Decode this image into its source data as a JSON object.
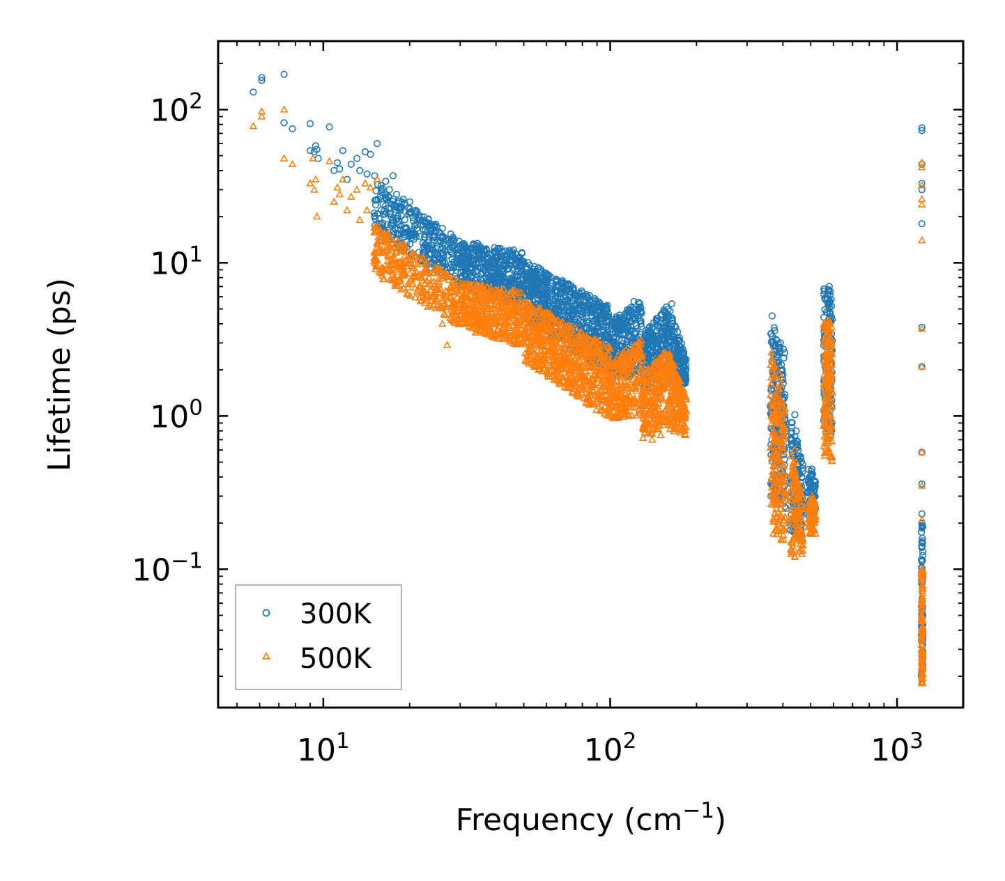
{
  "chart_data": {
    "type": "scatter",
    "title": "",
    "xlabel": "Frequency (cm",
    "xlabel_exponent": "−1",
    "xlabel_suffix": ")",
    "ylabel": "Lifetime (ps)",
    "xscale": "log",
    "yscale": "log",
    "xlim": [
      4.3,
      1700
    ],
    "ylim": [
      0.0125,
      280
    ],
    "x_ticks": [
      {
        "base": "10",
        "exp": "1",
        "value": 10
      },
      {
        "base": "10",
        "exp": "2",
        "value": 100
      },
      {
        "base": "10",
        "exp": "3",
        "value": 1000
      }
    ],
    "y_ticks": [
      {
        "base": "10",
        "exp": "−1",
        "value": 0.1
      },
      {
        "base": "10",
        "exp": "0",
        "value": 1
      },
      {
        "base": "10",
        "exp": "1",
        "value": 10
      },
      {
        "base": "10",
        "exp": "2",
        "value": 100
      }
    ],
    "legend": {
      "position": "lower-left"
    },
    "series": [
      {
        "name": "300K",
        "color": "#1f77b4",
        "marker": "circle",
        "points": [
          [
            5.7,
            130
          ],
          [
            6.1,
            155
          ],
          [
            6.1,
            162
          ],
          [
            7.3,
            170
          ],
          [
            7.3,
            82
          ],
          [
            7.8,
            75
          ],
          [
            9,
            54
          ],
          [
            9,
            81
          ],
          [
            9.3,
            53
          ],
          [
            9.4,
            58
          ],
          [
            9.5,
            55
          ],
          [
            9.6,
            48
          ],
          [
            10.5,
            77
          ],
          [
            10.9,
            40
          ],
          [
            11.2,
            45
          ],
          [
            11.4,
            41
          ],
          [
            11.7,
            54
          ],
          [
            12.1,
            35
          ],
          [
            12.5,
            44
          ],
          [
            13.1,
            48
          ],
          [
            13.4,
            40
          ],
          [
            14,
            53
          ],
          [
            14.2,
            38
          ],
          [
            14.6,
            51
          ],
          [
            15.1,
            37
          ],
          [
            15.4,
            60
          ],
          [
            15.9,
            32
          ],
          [
            16.5,
            34
          ],
          [
            17,
            30
          ],
          [
            17.5,
            37
          ],
          [
            18,
            28
          ],
          [
            19,
            26
          ],
          [
            20,
            25
          ],
          [
            21,
            22
          ],
          [
            22,
            20
          ],
          [
            23,
            18
          ],
          [
            24.5,
            17
          ],
          [
            26,
            15
          ],
          [
            28,
            14
          ],
          [
            30,
            13
          ],
          [
            33,
            12.5
          ],
          [
            36,
            11.5
          ],
          [
            40,
            11
          ],
          [
            45,
            11.5
          ],
          [
            50,
            10
          ],
          [
            55,
            8.5
          ],
          [
            60,
            7.5
          ],
          [
            66,
            7
          ],
          [
            72,
            6.5
          ],
          [
            78,
            5.5
          ],
          [
            85,
            5
          ],
          [
            92,
            4.5
          ],
          [
            100,
            2.7
          ],
          [
            108,
            3.6
          ],
          [
            115,
            4.5
          ],
          [
            121,
            5.6
          ],
          [
            128,
            4
          ],
          [
            136,
            2.8
          ],
          [
            143,
            3
          ],
          [
            150,
            3.8
          ],
          [
            158,
            4.6
          ],
          [
            164,
            5.4
          ],
          [
            172,
            3.2
          ],
          [
            178,
            2.4
          ],
          [
            183,
            1.8
          ],
          [
            367,
            4.5
          ],
          [
            370,
            3
          ],
          [
            372,
            1.5
          ],
          [
            375,
            0.6
          ],
          [
            380,
            1.2
          ],
          [
            385,
            2.8
          ],
          [
            392,
            3
          ],
          [
            398,
            2
          ],
          [
            402,
            0.6
          ],
          [
            405,
            0.35
          ],
          [
            410,
            0.25
          ],
          [
            420,
            0.3
          ],
          [
            430,
            0.4
          ],
          [
            440,
            1.02
          ],
          [
            445,
            0.8
          ],
          [
            450,
            0.55
          ],
          [
            455,
            0.3
          ],
          [
            462,
            0.18
          ],
          [
            470,
            0.3
          ],
          [
            480,
            0.25
          ],
          [
            495,
            0.4
          ],
          [
            505,
            0.45
          ],
          [
            515,
            0.3
          ],
          [
            560,
            1
          ],
          [
            565,
            2
          ],
          [
            570,
            4
          ],
          [
            575,
            5.5
          ],
          [
            580,
            7
          ],
          [
            585,
            6.5
          ],
          [
            590,
            3
          ],
          [
            1220,
            76
          ],
          [
            1220,
            73
          ],
          [
            1220,
            44
          ],
          [
            1220,
            33
          ],
          [
            1220,
            30
          ],
          [
            1220,
            18
          ],
          [
            1220,
            3.8
          ],
          [
            1220,
            2.1
          ],
          [
            1220,
            0.58
          ],
          [
            1220,
            0.36
          ],
          [
            1220,
            0.23
          ],
          [
            1220,
            0.15
          ],
          [
            1220,
            0.08
          ],
          [
            1220,
            0.05
          ],
          [
            1220,
            0.035
          ],
          [
            1220,
            0.022
          ]
        ],
        "bands": [
          {
            "x0": 15,
            "x1": 30,
            "lo0": 16,
            "hi0": 34,
            "lo1": 7,
            "hi1": 14,
            "n": 320
          },
          {
            "x0": 30,
            "x1": 50,
            "lo0": 7,
            "hi0": 14,
            "lo1": 5.2,
            "hi1": 12,
            "n": 420
          },
          {
            "x0": 50,
            "x1": 100,
            "lo0": 4.2,
            "hi0": 10.5,
            "lo1": 1.9,
            "hi1": 5.2,
            "n": 700
          },
          {
            "x0": 100,
            "x1": 130,
            "lo0": 1.8,
            "hi0": 4.2,
            "lo1": 1.8,
            "hi1": 5.8,
            "n": 260
          },
          {
            "x0": 130,
            "x1": 160,
            "lo0": 1.4,
            "hi0": 3.4,
            "lo1": 1.9,
            "hi1": 5.4,
            "n": 240
          },
          {
            "x0": 160,
            "x1": 184,
            "lo0": 1.6,
            "hi0": 5.3,
            "lo1": 1.6,
            "hi1": 2.4,
            "n": 180
          },
          {
            "x0": 362,
            "x1": 408,
            "lo0": 0.3,
            "hi0": 4.5,
            "lo1": 0.25,
            "hi1": 2.6,
            "n": 200
          },
          {
            "x0": 425,
            "x1": 470,
            "lo0": 0.18,
            "hi0": 1.0,
            "lo1": 0.15,
            "hi1": 0.5,
            "n": 120
          },
          {
            "x0": 490,
            "x1": 520,
            "lo0": 0.22,
            "hi0": 0.45,
            "lo1": 0.2,
            "hi1": 0.42,
            "n": 60
          },
          {
            "x0": 555,
            "x1": 595,
            "lo0": 0.8,
            "hi0": 7,
            "lo1": 0.7,
            "hi1": 6.5,
            "n": 150
          },
          {
            "x0": 1215,
            "x1": 1230,
            "lo0": 0.02,
            "hi0": 0.2,
            "lo1": 0.02,
            "hi1": 0.2,
            "n": 80
          }
        ]
      },
      {
        "name": "500K",
        "color": "#ff7f0e",
        "marker": "triangle",
        "points": [
          [
            5.7,
            78
          ],
          [
            6.1,
            97
          ],
          [
            6.1,
            90
          ],
          [
            7.3,
            100
          ],
          [
            7.3,
            48
          ],
          [
            7.8,
            44
          ],
          [
            9,
            33
          ],
          [
            9.2,
            48
          ],
          [
            9.3,
            30
          ],
          [
            9.4,
            35
          ],
          [
            9.5,
            20
          ],
          [
            10.5,
            46
          ],
          [
            10.9,
            25
          ],
          [
            11.2,
            31
          ],
          [
            11.4,
            28
          ],
          [
            11.7,
            35
          ],
          [
            12.1,
            22
          ],
          [
            12.5,
            27
          ],
          [
            13.1,
            30
          ],
          [
            13.4,
            19
          ],
          [
            14,
            33
          ],
          [
            14.2,
            22
          ],
          [
            14.6,
            31
          ],
          [
            15.1,
            16
          ],
          [
            15.4,
            35
          ],
          [
            16,
            9
          ],
          [
            16.5,
            14
          ],
          [
            17,
            9
          ],
          [
            18,
            10
          ],
          [
            19,
            9
          ],
          [
            20,
            8.5
          ],
          [
            22,
            8
          ],
          [
            24,
            6
          ],
          [
            26,
            4
          ],
          [
            27,
            2.9
          ],
          [
            30,
            4.6
          ],
          [
            34,
            3.5
          ],
          [
            38,
            4.5
          ],
          [
            42,
            5
          ],
          [
            48,
            5
          ],
          [
            52,
            2.2
          ],
          [
            58,
            2.2
          ],
          [
            64,
            2.1
          ],
          [
            70,
            2.4
          ],
          [
            80,
            1.8
          ],
          [
            90,
            1.2
          ],
          [
            100,
            1
          ],
          [
            110,
            1.5
          ],
          [
            120,
            2.5
          ],
          [
            130,
            1.5
          ],
          [
            140,
            0.7
          ],
          [
            150,
            0.75
          ],
          [
            160,
            1.6
          ],
          [
            170,
            1.8
          ],
          [
            178,
            0.8
          ],
          [
            183,
            0.75
          ],
          [
            365,
            2.6
          ],
          [
            368,
            2
          ],
          [
            372,
            0.7
          ],
          [
            375,
            0.3
          ],
          [
            380,
            0.18
          ],
          [
            388,
            1.5
          ],
          [
            395,
            1.8
          ],
          [
            400,
            0.8
          ],
          [
            408,
            0.3
          ],
          [
            420,
            0.2
          ],
          [
            430,
            0.28
          ],
          [
            440,
            0.6
          ],
          [
            445,
            0.5
          ],
          [
            450,
            0.3
          ],
          [
            458,
            0.13
          ],
          [
            470,
            0.2
          ],
          [
            480,
            0.25
          ],
          [
            495,
            0.2
          ],
          [
            505,
            0.3
          ],
          [
            515,
            0.2
          ],
          [
            560,
            0.55
          ],
          [
            565,
            1
          ],
          [
            570,
            2.5
          ],
          [
            575,
            3.5
          ],
          [
            580,
            4.2
          ],
          [
            585,
            4
          ],
          [
            590,
            2
          ],
          [
            1220,
            45
          ],
          [
            1220,
            42
          ],
          [
            1220,
            32
          ],
          [
            1220,
            26
          ],
          [
            1220,
            24
          ],
          [
            1220,
            14
          ],
          [
            1220,
            3.7
          ],
          [
            1220,
            2.1
          ],
          [
            1220,
            0.58
          ],
          [
            1220,
            0.35
          ],
          [
            1220,
            0.21
          ],
          [
            1220,
            0.1
          ],
          [
            1220,
            0.06
          ],
          [
            1220,
            0.035
          ],
          [
            1220,
            0.02
          ],
          [
            1220,
            0.018
          ]
        ],
        "bands": [
          {
            "x0": 15,
            "x1": 30,
            "lo0": 8.5,
            "hi0": 18,
            "lo1": 3.8,
            "hi1": 7.5,
            "n": 320
          },
          {
            "x0": 30,
            "x1": 50,
            "lo0": 3.8,
            "hi0": 7.5,
            "lo1": 2.8,
            "hi1": 6.5,
            "n": 420
          },
          {
            "x0": 50,
            "x1": 100,
            "lo0": 2.3,
            "hi0": 5.8,
            "lo1": 0.95,
            "hi1": 2.8,
            "n": 700
          },
          {
            "x0": 100,
            "x1": 130,
            "lo0": 0.95,
            "hi0": 2.3,
            "lo1": 1.0,
            "hi1": 3.2,
            "n": 260
          },
          {
            "x0": 130,
            "x1": 160,
            "lo0": 0.7,
            "hi0": 1.9,
            "lo1": 0.9,
            "hi1": 2.8,
            "n": 240
          },
          {
            "x0": 160,
            "x1": 184,
            "lo0": 0.8,
            "hi0": 2.8,
            "lo1": 0.75,
            "hi1": 1.4,
            "n": 180
          },
          {
            "x0": 362,
            "x1": 408,
            "lo0": 0.17,
            "hi0": 2.6,
            "lo1": 0.15,
            "hi1": 1.5,
            "n": 200
          },
          {
            "x0": 425,
            "x1": 470,
            "lo0": 0.12,
            "hi0": 0.6,
            "lo1": 0.12,
            "hi1": 0.3,
            "n": 120
          },
          {
            "x0": 490,
            "x1": 520,
            "lo0": 0.17,
            "hi0": 0.3,
            "lo1": 0.17,
            "hi1": 0.28,
            "n": 60
          },
          {
            "x0": 555,
            "x1": 595,
            "lo0": 0.55,
            "hi0": 4.5,
            "lo1": 0.5,
            "hi1": 4.0,
            "n": 150
          },
          {
            "x0": 1215,
            "x1": 1230,
            "lo0": 0.018,
            "hi0": 0.1,
            "lo1": 0.018,
            "hi1": 0.1,
            "n": 80
          }
        ]
      }
    ]
  }
}
